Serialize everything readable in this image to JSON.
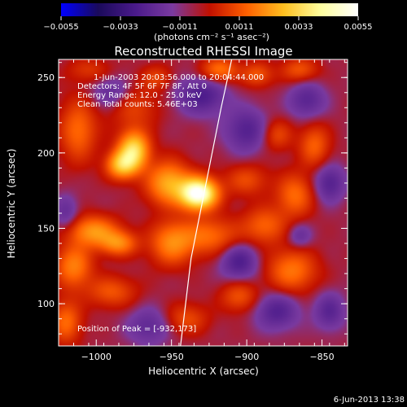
{
  "chart_data": {
    "type": "heatmap",
    "title": "Reconstructed RHESSI Image",
    "xlabel": "Heliocentric X (arcsec)",
    "ylabel": "Heliocentric Y (arcsec)",
    "xlim": [
      -1025,
      -833
    ],
    "ylim": [
      72,
      262
    ],
    "x_ticks": [
      -1000,
      -950,
      -900,
      -850
    ],
    "x_tick_labels": [
      "−1000",
      "−950",
      "−900",
      "−850"
    ],
    "y_ticks": [
      100,
      150,
      200,
      250
    ],
    "y_tick_labels": [
      "100",
      "150",
      "200",
      "250"
    ],
    "colorbar": {
      "min": -0.0055,
      "max": 0.0055,
      "ticks": [
        -0.0055,
        -0.0033,
        -0.0011,
        0.0011,
        0.0033,
        0.0055
      ],
      "tick_labels": [
        "−0.0055",
        "−0.0033",
        "−0.0011",
        "0.0011",
        "0.0033",
        "0.0055"
      ],
      "unit_label": "(photons cm⁻² s⁻¹ asec⁻²)",
      "colors": [
        "#0000ff",
        "#1a0a5a",
        "#4a1a8a",
        "#7a3aa0",
        "#c01000",
        "#ff6000",
        "#ffc020",
        "#ffffa0",
        "#ffffff"
      ]
    },
    "annotations": [
      "1-Jun-2003 20:03:56.000 to 20:04:44.000",
      "Detectors: 4F 5F 6F 7F 8F, Att 0",
      "Energy Range: 12.0 - 25.0 keV",
      "Clean     Total counts: 5.46E+03"
    ],
    "peak_label": "Position of Peak = [-932,173]",
    "peak": [
      -932,
      173
    ],
    "limb_curve": [
      [
        -944,
        72
      ],
      [
        -937,
        130
      ],
      [
        -928,
        175
      ],
      [
        -917,
        230
      ],
      [
        -910,
        262
      ]
    ],
    "blobs": [
      [
        -932,
        173,
        12,
        10,
        1.7
      ],
      [
        -952,
        180,
        14,
        14,
        0.8
      ],
      [
        -975,
        202,
        10,
        12,
        1.1
      ],
      [
        -983,
        192,
        10,
        9,
        0.9
      ],
      [
        -1012,
        215,
        12,
        20,
        0.5
      ],
      [
        -1002,
        148,
        16,
        10,
        0.7
      ],
      [
        -985,
        140,
        12,
        8,
        0.6
      ],
      [
        -1015,
        125,
        12,
        14,
        0.6
      ],
      [
        -990,
        108,
        16,
        10,
        0.4
      ],
      [
        -950,
        140,
        14,
        14,
        0.6
      ],
      [
        -925,
        145,
        20,
        12,
        0.5
      ],
      [
        -918,
        255,
        12,
        8,
        0.55
      ],
      [
        -893,
        252,
        10,
        8,
        0.4
      ],
      [
        -865,
        255,
        12,
        8,
        0.4
      ],
      [
        -880,
        212,
        10,
        10,
        0.35
      ],
      [
        -855,
        205,
        10,
        14,
        0.45
      ],
      [
        -900,
        182,
        14,
        10,
        0.35
      ],
      [
        -868,
        172,
        12,
        14,
        0.5
      ],
      [
        -888,
        152,
        14,
        12,
        0.45
      ],
      [
        -870,
        122,
        16,
        14,
        0.55
      ],
      [
        -905,
        105,
        12,
        10,
        0.4
      ],
      [
        -940,
        90,
        14,
        10,
        0.35
      ],
      [
        -1020,
        88,
        10,
        14,
        0.5
      ],
      [
        -975,
        230,
        16,
        14,
        0.3
      ],
      [
        -1005,
        255,
        14,
        8,
        0.25
      ],
      [
        -960,
        250,
        10,
        8,
        0.3
      ]
    ],
    "wells": [
      [
        -930,
        238,
        16,
        12,
        -0.5
      ],
      [
        -900,
        215,
        14,
        14,
        -0.45
      ],
      [
        -860,
        235,
        12,
        12,
        -0.4
      ],
      [
        -845,
        180,
        10,
        12,
        -0.45
      ],
      [
        -905,
        128,
        12,
        12,
        -0.5
      ],
      [
        -880,
        95,
        14,
        12,
        -0.45
      ],
      [
        -845,
        95,
        10,
        12,
        -0.4
      ],
      [
        -965,
        85,
        14,
        12,
        -0.35
      ],
      [
        -990,
        240,
        12,
        10,
        -0.35
      ],
      [
        -1020,
        160,
        8,
        12,
        -0.3
      ],
      [
        -865,
        145,
        8,
        8,
        -0.3
      ]
    ]
  },
  "footer_date": "6-Jun-2013 13:38"
}
